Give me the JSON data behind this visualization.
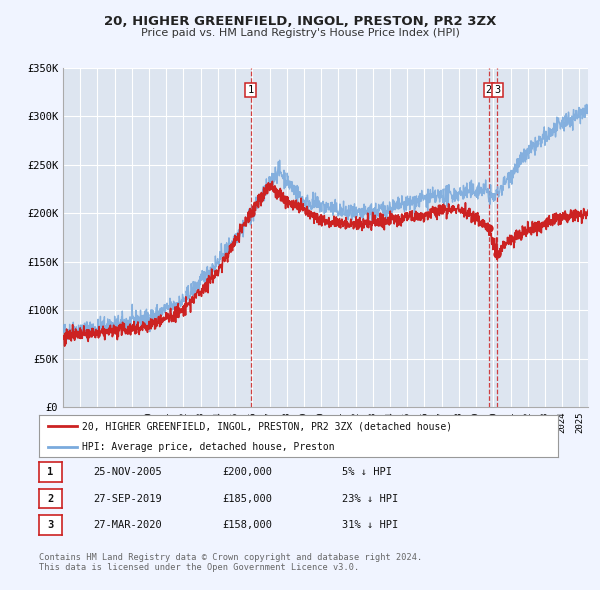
{
  "title": "20, HIGHER GREENFIELD, INGOL, PRESTON, PR2 3ZX",
  "subtitle": "Price paid vs. HM Land Registry's House Price Index (HPI)",
  "ylim": [
    0,
    350000
  ],
  "yticks": [
    0,
    50000,
    100000,
    150000,
    200000,
    250000,
    300000,
    350000
  ],
  "ytick_labels": [
    "£0",
    "£50K",
    "£100K",
    "£150K",
    "£200K",
    "£250K",
    "£300K",
    "£350K"
  ],
  "background_color": "#f0f4ff",
  "plot_bg_color": "#dde5f0",
  "grid_color": "#ffffff",
  "hpi_color": "#7aaadd",
  "price_color": "#cc2222",
  "vline_color": "#cc2222",
  "legend_label_price": "20, HIGHER GREENFIELD, INGOL, PRESTON, PR2 3ZX (detached house)",
  "legend_label_hpi": "HPI: Average price, detached house, Preston",
  "transactions": [
    {
      "label": "1",
      "x_year": 2005.9,
      "price": 200000
    },
    {
      "label": "2",
      "x_year": 2019.74,
      "price": 185000
    },
    {
      "label": "3",
      "x_year": 2020.24,
      "price": 158000
    }
  ],
  "table_rows": [
    {
      "num": "1",
      "date": "25-NOV-2005",
      "price": "£200,000",
      "pct": "5% ↓ HPI"
    },
    {
      "num": "2",
      "date": "27-SEP-2019",
      "price": "£185,000",
      "pct": "23% ↓ HPI"
    },
    {
      "num": "3",
      "date": "27-MAR-2020",
      "price": "£158,000",
      "pct": "31% ↓ HPI"
    }
  ],
  "footer1": "Contains HM Land Registry data © Crown copyright and database right 2024.",
  "footer2": "This data is licensed under the Open Government Licence v3.0.",
  "xmin": 1995.0,
  "xmax": 2025.5,
  "hpi_control_x": [
    1995,
    1997,
    2000,
    2002,
    2004,
    2005,
    2006,
    2007.5,
    2009,
    2010,
    2012,
    2014,
    2016,
    2018,
    2019.5,
    2020,
    2021,
    2022,
    2023,
    2024,
    2025.5
  ],
  "hpi_control_y": [
    78000,
    82000,
    92000,
    110000,
    150000,
    175000,
    200000,
    245000,
    212000,
    208000,
    198000,
    205000,
    215000,
    220000,
    225000,
    215000,
    240000,
    262000,
    278000,
    292000,
    308000
  ],
  "price_control_x": [
    1995,
    1997,
    2000,
    2002,
    2004,
    2005.9,
    2007,
    2008,
    2010,
    2012,
    2014,
    2016,
    2018,
    2019.74,
    2020.24,
    2021,
    2022,
    2023,
    2024,
    2025.5
  ],
  "price_control_y": [
    73000,
    76000,
    84000,
    100000,
    140000,
    200000,
    228000,
    213000,
    193000,
    188000,
    193000,
    198000,
    206000,
    185000,
    158000,
    173000,
    183000,
    190000,
    196000,
    201000
  ]
}
